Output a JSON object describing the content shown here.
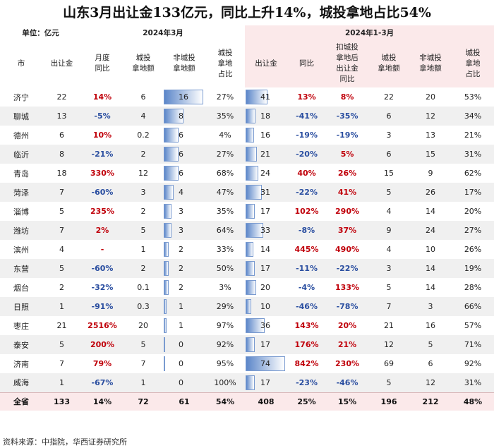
{
  "title": "山东3月出让金133亿元，同比上升14%，城投拿地占比54%",
  "unit_label": "单位：亿元",
  "group_march": "2024年3月",
  "group_ytd": "2024年1-3月",
  "headers": [
    "市",
    "出让金",
    "月度\n同比",
    "城投\n拿地额",
    "非城投\n拿地额",
    "城投\n拿地\n占比",
    "出让金",
    "同比",
    "扣城投\n拿地后\n出让金\n同比",
    "城投\n拿地额",
    "非城投\n拿地额",
    "城投\n拿地\n占比"
  ],
  "rows": [
    {
      "city": "济宁",
      "m_sale": "22",
      "m_yoy": "14%",
      "m_yoy_c": "red",
      "m_lgfv": "6",
      "m_non": "16",
      "m_non_v": 16,
      "m_share": "27%",
      "y_sale": "41",
      "y_sale_v": 41,
      "y_yoy": "13%",
      "y_yoy_c": "red",
      "y_ex": "8%",
      "y_ex_c": "red",
      "y_lgfv": "22",
      "y_non": "20",
      "y_share": "53%"
    },
    {
      "city": "聊城",
      "m_sale": "13",
      "m_yoy": "-5%",
      "m_yoy_c": "blue",
      "m_lgfv": "4",
      "m_non": "8",
      "m_non_v": 8,
      "m_share": "35%",
      "y_sale": "18",
      "y_sale_v": 18,
      "y_yoy": "-41%",
      "y_yoy_c": "blue",
      "y_ex": "-35%",
      "y_ex_c": "blue",
      "y_lgfv": "6",
      "y_non": "12",
      "y_share": "34%"
    },
    {
      "city": "德州",
      "m_sale": "6",
      "m_yoy": "10%",
      "m_yoy_c": "red",
      "m_lgfv": "0.2",
      "m_non": "6",
      "m_non_v": 6,
      "m_share": "4%",
      "y_sale": "16",
      "y_sale_v": 16,
      "y_yoy": "-19%",
      "y_yoy_c": "blue",
      "y_ex": "-19%",
      "y_ex_c": "blue",
      "y_lgfv": "3",
      "y_non": "13",
      "y_share": "21%"
    },
    {
      "city": "临沂",
      "m_sale": "8",
      "m_yoy": "-21%",
      "m_yoy_c": "blue",
      "m_lgfv": "2",
      "m_non": "6",
      "m_non_v": 6,
      "m_share": "27%",
      "y_sale": "21",
      "y_sale_v": 21,
      "y_yoy": "-20%",
      "y_yoy_c": "blue",
      "y_ex": "5%",
      "y_ex_c": "red",
      "y_lgfv": "6",
      "y_non": "15",
      "y_share": "31%"
    },
    {
      "city": "青岛",
      "m_sale": "18",
      "m_yoy": "330%",
      "m_yoy_c": "red",
      "m_lgfv": "12",
      "m_non": "6",
      "m_non_v": 6,
      "m_share": "68%",
      "y_sale": "24",
      "y_sale_v": 24,
      "y_yoy": "40%",
      "y_yoy_c": "red",
      "y_ex": "26%",
      "y_ex_c": "red",
      "y_lgfv": "15",
      "y_non": "9",
      "y_share": "62%"
    },
    {
      "city": "菏泽",
      "m_sale": "7",
      "m_yoy": "-60%",
      "m_yoy_c": "blue",
      "m_lgfv": "3",
      "m_non": "4",
      "m_non_v": 4,
      "m_share": "47%",
      "y_sale": "31",
      "y_sale_v": 31,
      "y_yoy": "-22%",
      "y_yoy_c": "blue",
      "y_ex": "41%",
      "y_ex_c": "red",
      "y_lgfv": "5",
      "y_non": "26",
      "y_share": "17%"
    },
    {
      "city": "淄博",
      "m_sale": "5",
      "m_yoy": "235%",
      "m_yoy_c": "red",
      "m_lgfv": "2",
      "m_non": "3",
      "m_non_v": 3,
      "m_share": "35%",
      "y_sale": "17",
      "y_sale_v": 17,
      "y_yoy": "102%",
      "y_yoy_c": "red",
      "y_ex": "290%",
      "y_ex_c": "red",
      "y_lgfv": "4",
      "y_non": "14",
      "y_share": "20%"
    },
    {
      "city": "潍坊",
      "m_sale": "7",
      "m_yoy": "2%",
      "m_yoy_c": "red",
      "m_lgfv": "5",
      "m_non": "3",
      "m_non_v": 3,
      "m_share": "64%",
      "y_sale": "33",
      "y_sale_v": 33,
      "y_yoy": "-8%",
      "y_yoy_c": "blue",
      "y_ex": "37%",
      "y_ex_c": "red",
      "y_lgfv": "9",
      "y_non": "24",
      "y_share": "27%"
    },
    {
      "city": "滨州",
      "m_sale": "4",
      "m_yoy": "-",
      "m_yoy_c": "red",
      "m_lgfv": "1",
      "m_non": "2",
      "m_non_v": 2,
      "m_share": "33%",
      "y_sale": "14",
      "y_sale_v": 14,
      "y_yoy": "445%",
      "y_yoy_c": "red",
      "y_ex": "490%",
      "y_ex_c": "red",
      "y_lgfv": "4",
      "y_non": "10",
      "y_share": "26%"
    },
    {
      "city": "东营",
      "m_sale": "5",
      "m_yoy": "-60%",
      "m_yoy_c": "blue",
      "m_lgfv": "2",
      "m_non": "2",
      "m_non_v": 2,
      "m_share": "50%",
      "y_sale": "17",
      "y_sale_v": 17,
      "y_yoy": "-11%",
      "y_yoy_c": "blue",
      "y_ex": "-22%",
      "y_ex_c": "blue",
      "y_lgfv": "3",
      "y_non": "14",
      "y_share": "19%"
    },
    {
      "city": "烟台",
      "m_sale": "2",
      "m_yoy": "-32%",
      "m_yoy_c": "blue",
      "m_lgfv": "0.1",
      "m_non": "2",
      "m_non_v": 2,
      "m_share": "3%",
      "y_sale": "20",
      "y_sale_v": 20,
      "y_yoy": "-4%",
      "y_yoy_c": "blue",
      "y_ex": "133%",
      "y_ex_c": "red",
      "y_lgfv": "5",
      "y_non": "14",
      "y_share": "28%"
    },
    {
      "city": "日照",
      "m_sale": "1",
      "m_yoy": "-91%",
      "m_yoy_c": "blue",
      "m_lgfv": "0.3",
      "m_non": "1",
      "m_non_v": 1,
      "m_share": "29%",
      "y_sale": "10",
      "y_sale_v": 10,
      "y_yoy": "-46%",
      "y_yoy_c": "blue",
      "y_ex": "-78%",
      "y_ex_c": "blue",
      "y_lgfv": "7",
      "y_non": "3",
      "y_share": "66%"
    },
    {
      "city": "枣庄",
      "m_sale": "21",
      "m_yoy": "2516%",
      "m_yoy_c": "red",
      "m_lgfv": "20",
      "m_non": "1",
      "m_non_v": 1,
      "m_share": "97%",
      "y_sale": "36",
      "y_sale_v": 36,
      "y_yoy": "143%",
      "y_yoy_c": "red",
      "y_ex": "20%",
      "y_ex_c": "red",
      "y_lgfv": "21",
      "y_non": "16",
      "y_share": "57%"
    },
    {
      "city": "泰安",
      "m_sale": "5",
      "m_yoy": "200%",
      "m_yoy_c": "red",
      "m_lgfv": "5",
      "m_non": "0",
      "m_non_v": 0.4,
      "m_share": "92%",
      "y_sale": "17",
      "y_sale_v": 17,
      "y_yoy": "176%",
      "y_yoy_c": "red",
      "y_ex": "21%",
      "y_ex_c": "red",
      "y_lgfv": "12",
      "y_non": "5",
      "y_share": "71%"
    },
    {
      "city": "济南",
      "m_sale": "7",
      "m_yoy": "79%",
      "m_yoy_c": "red",
      "m_lgfv": "7",
      "m_non": "0",
      "m_non_v": 0.4,
      "m_share": "95%",
      "y_sale": "74",
      "y_sale_v": 74,
      "y_yoy": "842%",
      "y_yoy_c": "red",
      "y_ex": "230%",
      "y_ex_c": "red",
      "y_lgfv": "69",
      "y_non": "6",
      "y_share": "92%"
    },
    {
      "city": "威海",
      "m_sale": "1",
      "m_yoy": "-67%",
      "m_yoy_c": "blue",
      "m_lgfv": "1",
      "m_non": "0",
      "m_non_v": 0,
      "m_share": "100%",
      "y_sale": "17",
      "y_sale_v": 17,
      "y_yoy": "-23%",
      "y_yoy_c": "blue",
      "y_ex": "-46%",
      "y_ex_c": "blue",
      "y_lgfv": "5",
      "y_non": "12",
      "y_share": "31%"
    }
  ],
  "total": {
    "city": "全省",
    "m_sale": "133",
    "m_yoy": "14%",
    "m_yoy_c": "red",
    "m_lgfv": "72",
    "m_non": "61",
    "m_share": "54%",
    "y_sale": "408",
    "y_yoy": "25%",
    "y_yoy_c": "red",
    "y_ex": "15%",
    "y_ex_c": "red",
    "y_lgfv": "196",
    "y_non": "212",
    "y_share": "48%"
  },
  "colors": {
    "red": "#c0000a",
    "blue": "#2a4ea0",
    "bar": "#5b86c9",
    "total_bg": "#fbe9ea"
  },
  "footer": "资料来源：中指院，华西证券研究所"
}
